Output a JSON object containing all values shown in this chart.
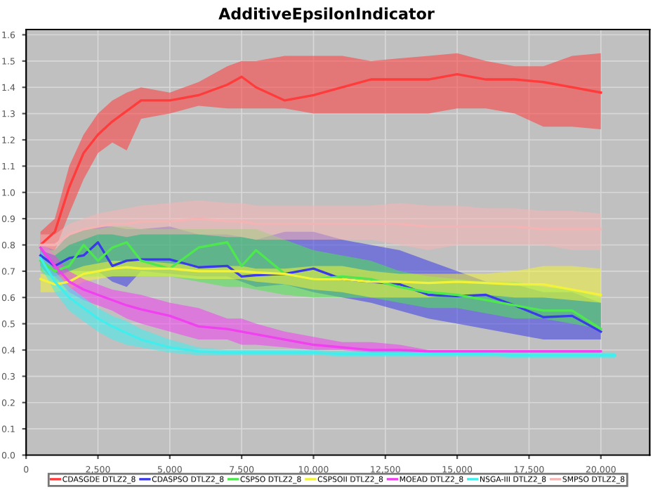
{
  "chart_data": {
    "type": "line",
    "title": "AdditiveEpsilonIndicator",
    "x": [
      500,
      1000,
      1500,
      2000,
      2500,
      3000,
      3500,
      4000,
      5000,
      6000,
      7000,
      7500,
      8000,
      9000,
      10000,
      11000,
      12000,
      13000,
      14000,
      15000,
      16000,
      17000,
      18000,
      19000,
      20000
    ],
    "series": [
      {
        "name": "CDASGDE DTLZ2_8",
        "color": "#ff3b3b",
        "values": [
          0.8,
          0.85,
          1.02,
          1.15,
          1.22,
          1.27,
          1.31,
          1.35,
          1.35,
          1.37,
          1.41,
          1.44,
          1.4,
          1.35,
          1.37,
          1.4,
          1.43,
          1.43,
          1.43,
          1.45,
          1.43,
          1.43,
          1.42,
          1.4,
          1.38
        ],
        "lower": [
          0.77,
          0.78,
          0.92,
          1.05,
          1.15,
          1.19,
          1.16,
          1.28,
          1.3,
          1.33,
          1.32,
          1.32,
          1.32,
          1.32,
          1.3,
          1.3,
          1.3,
          1.3,
          1.3,
          1.32,
          1.32,
          1.3,
          1.25,
          1.25,
          1.24
        ],
        "upper": [
          0.85,
          0.9,
          1.1,
          1.22,
          1.3,
          1.35,
          1.38,
          1.4,
          1.38,
          1.42,
          1.48,
          1.5,
          1.5,
          1.52,
          1.52,
          1.52,
          1.5,
          1.51,
          1.52,
          1.53,
          1.5,
          1.48,
          1.48,
          1.52,
          1.53
        ]
      },
      {
        "name": "CDASPSO DTLZ2_8",
        "color": "#3a3ae8",
        "values": [
          0.76,
          0.72,
          0.75,
          0.76,
          0.81,
          0.72,
          0.74,
          0.745,
          0.745,
          0.715,
          0.72,
          0.68,
          0.685,
          0.69,
          0.71,
          0.67,
          0.66,
          0.65,
          0.61,
          0.605,
          0.61,
          0.57,
          0.525,
          0.53,
          0.47
        ],
        "lower": [
          0.72,
          0.66,
          0.7,
          0.7,
          0.7,
          0.66,
          0.64,
          0.7,
          0.69,
          0.68,
          0.68,
          0.66,
          0.64,
          0.65,
          0.62,
          0.6,
          0.58,
          0.55,
          0.52,
          0.5,
          0.48,
          0.46,
          0.44,
          0.44,
          0.44
        ],
        "upper": [
          0.8,
          0.78,
          0.84,
          0.86,
          0.87,
          0.87,
          0.86,
          0.86,
          0.87,
          0.84,
          0.84,
          0.83,
          0.82,
          0.85,
          0.85,
          0.82,
          0.8,
          0.78,
          0.74,
          0.7,
          0.66,
          0.65,
          0.62,
          0.62,
          0.58
        ]
      },
      {
        "name": "CSPSO DTLZ2_8",
        "color": "#4ee84e",
        "values": [
          0.74,
          0.7,
          0.72,
          0.8,
          0.74,
          0.79,
          0.81,
          0.74,
          0.71,
          0.79,
          0.81,
          0.72,
          0.78,
          0.69,
          0.67,
          0.68,
          0.67,
          0.64,
          0.62,
          0.61,
          0.59,
          0.57,
          0.55,
          0.55,
          0.48
        ],
        "lower": [
          0.7,
          0.66,
          0.66,
          0.68,
          0.68,
          0.68,
          0.68,
          0.68,
          0.68,
          0.66,
          0.64,
          0.64,
          0.63,
          0.61,
          0.6,
          0.6,
          0.6,
          0.58,
          0.56,
          0.56,
          0.54,
          0.52,
          0.52,
          0.5,
          0.48
        ],
        "upper": [
          0.78,
          0.78,
          0.84,
          0.86,
          0.86,
          0.87,
          0.87,
          0.86,
          0.86,
          0.86,
          0.86,
          0.86,
          0.86,
          0.82,
          0.78,
          0.76,
          0.74,
          0.7,
          0.68,
          0.67,
          0.66,
          0.66,
          0.64,
          0.63,
          0.6
        ]
      },
      {
        "name": "CSPSOII DTLZ2_8",
        "color": "#f2f23a",
        "values": [
          0.67,
          0.65,
          0.66,
          0.69,
          0.7,
          0.71,
          0.715,
          0.71,
          0.71,
          0.7,
          0.7,
          0.7,
          0.695,
          0.69,
          0.67,
          0.67,
          0.66,
          0.66,
          0.655,
          0.66,
          0.655,
          0.65,
          0.65,
          0.63,
          0.61
        ],
        "lower": [
          0.62,
          0.62,
          0.63,
          0.66,
          0.67,
          0.68,
          0.68,
          0.68,
          0.68,
          0.67,
          0.67,
          0.67,
          0.66,
          0.65,
          0.63,
          0.62,
          0.6,
          0.6,
          0.6,
          0.61,
          0.61,
          0.6,
          0.6,
          0.59,
          0.58
        ],
        "upper": [
          0.69,
          0.68,
          0.7,
          0.72,
          0.73,
          0.74,
          0.74,
          0.74,
          0.73,
          0.72,
          0.72,
          0.72,
          0.71,
          0.71,
          0.72,
          0.72,
          0.7,
          0.69,
          0.69,
          0.69,
          0.69,
          0.7,
          0.72,
          0.72,
          0.71
        ]
      },
      {
        "name": "MOEAD DTLZ2_8",
        "color": "#f040f0",
        "values": [
          0.79,
          0.72,
          0.66,
          0.63,
          0.61,
          0.59,
          0.57,
          0.555,
          0.53,
          0.49,
          0.48,
          0.47,
          0.46,
          0.44,
          0.42,
          0.41,
          0.4,
          0.4,
          0.395,
          0.395,
          0.395,
          0.395,
          0.395,
          0.395,
          0.395
        ],
        "lower": [
          0.76,
          0.68,
          0.62,
          0.59,
          0.57,
          0.55,
          0.52,
          0.5,
          0.47,
          0.44,
          0.44,
          0.42,
          0.42,
          0.41,
          0.4,
          0.4,
          0.39,
          0.39,
          0.39,
          0.39,
          0.39,
          0.39,
          0.39,
          0.39,
          0.39
        ],
        "upper": [
          0.82,
          0.76,
          0.7,
          0.67,
          0.65,
          0.63,
          0.62,
          0.61,
          0.58,
          0.56,
          0.52,
          0.52,
          0.5,
          0.47,
          0.45,
          0.43,
          0.43,
          0.42,
          0.4,
          0.4,
          0.4,
          0.4,
          0.4,
          0.4,
          0.4
        ]
      },
      {
        "name": "NSGA-III DTLZ2_8",
        "color": "#40eeee",
        "x": [
          500,
          1000,
          1500,
          2000,
          2500,
          3000,
          3500,
          4000,
          5000,
          6000,
          7000,
          7500,
          8000,
          9000,
          10000,
          11000,
          12000,
          13000,
          14000,
          15000,
          16000,
          17000,
          18000,
          19000,
          20000,
          20500
        ],
        "values": [
          0.75,
          0.66,
          0.6,
          0.56,
          0.52,
          0.49,
          0.465,
          0.44,
          0.41,
          0.395,
          0.39,
          0.39,
          0.39,
          0.39,
          0.39,
          0.385,
          0.385,
          0.385,
          0.385,
          0.385,
          0.385,
          0.38,
          0.38,
          0.38,
          0.38,
          0.38
        ],
        "lower": [
          0.72,
          0.62,
          0.55,
          0.51,
          0.47,
          0.44,
          0.42,
          0.41,
          0.39,
          0.38,
          0.38,
          0.38,
          0.38,
          0.38,
          0.38,
          0.375,
          0.375,
          0.375,
          0.375,
          0.375,
          0.375,
          0.37,
          0.37,
          0.37,
          0.37,
          0.37
        ],
        "upper": [
          0.78,
          0.7,
          0.64,
          0.6,
          0.56,
          0.53,
          0.51,
          0.48,
          0.44,
          0.41,
          0.4,
          0.4,
          0.4,
          0.4,
          0.4,
          0.395,
          0.395,
          0.395,
          0.395,
          0.395,
          0.395,
          0.39,
          0.39,
          0.39,
          0.39,
          0.39
        ]
      },
      {
        "name": "SMPSO DTLZ2_8",
        "color": "#f5b4b4",
        "values": [
          0.8,
          0.8,
          0.84,
          0.86,
          0.87,
          0.88,
          0.88,
          0.89,
          0.89,
          0.9,
          0.89,
          0.89,
          0.88,
          0.88,
          0.88,
          0.88,
          0.88,
          0.88,
          0.87,
          0.87,
          0.87,
          0.87,
          0.86,
          0.86,
          0.86
        ],
        "lower": [
          0.78,
          0.76,
          0.8,
          0.82,
          0.84,
          0.84,
          0.83,
          0.84,
          0.84,
          0.84,
          0.83,
          0.83,
          0.82,
          0.82,
          0.82,
          0.82,
          0.82,
          0.8,
          0.78,
          0.8,
          0.8,
          0.8,
          0.8,
          0.78,
          0.78
        ],
        "upper": [
          0.84,
          0.84,
          0.88,
          0.9,
          0.92,
          0.93,
          0.94,
          0.95,
          0.96,
          0.97,
          0.96,
          0.96,
          0.95,
          0.95,
          0.95,
          0.95,
          0.95,
          0.96,
          0.95,
          0.95,
          0.94,
          0.94,
          0.93,
          0.93,
          0.92
        ]
      }
    ],
    "xlim": [
      0,
      21700
    ],
    "ylim": [
      0,
      1.62
    ],
    "xticks": [
      0,
      {
        "value": 2500,
        "label": "2,500"
      },
      {
        "value": 5000,
        "label": "5,000"
      },
      {
        "value": 7500,
        "label": "7,500"
      },
      {
        "value": 10000,
        "label": "10,000"
      },
      {
        "value": 12500,
        "label": "12,500"
      },
      {
        "value": 15000,
        "label": "15,000"
      },
      {
        "value": 17500,
        "label": "17,500"
      },
      {
        "value": 20000,
        "label": "20,000"
      }
    ],
    "yticks": [
      {
        "value": 0,
        "label": "0.0"
      },
      0.1,
      0.2,
      0.3,
      0.4,
      0.5,
      0.6,
      0.7,
      0.8,
      0.9,
      {
        "value": 1,
        "label": "1.0"
      },
      1.1,
      1.2,
      1.3,
      1.4,
      1.5,
      1.6
    ],
    "grid": true,
    "legend": "bottom",
    "marker": "none",
    "line_style": "solid"
  }
}
